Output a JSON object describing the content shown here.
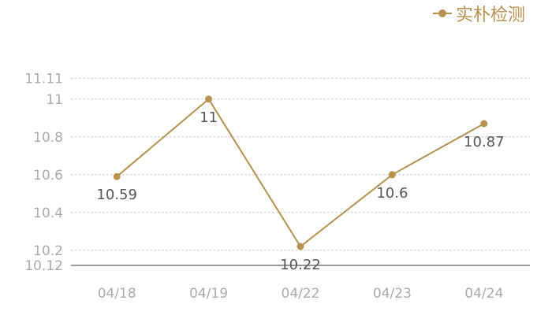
{
  "chart_data": {
    "type": "line",
    "categories": [
      "04/18",
      "04/19",
      "04/22",
      "04/23",
      "04/24"
    ],
    "series": [
      {
        "name": "实朴检测",
        "values": [
          10.59,
          11,
          10.22,
          10.6,
          10.87
        ],
        "color": "#b8914f"
      }
    ],
    "ylim": [
      10.12,
      11.11
    ],
    "yticks": [
      "10.12",
      "10.2",
      "10.4",
      "10.6",
      "10.8",
      "11",
      "11.11"
    ],
    "data_labels": [
      "10.59",
      "11",
      "10.22",
      "10.6",
      "10.87"
    ],
    "grid": true,
    "legend": "top-right",
    "title": "",
    "xlabel": "",
    "ylabel": ""
  }
}
